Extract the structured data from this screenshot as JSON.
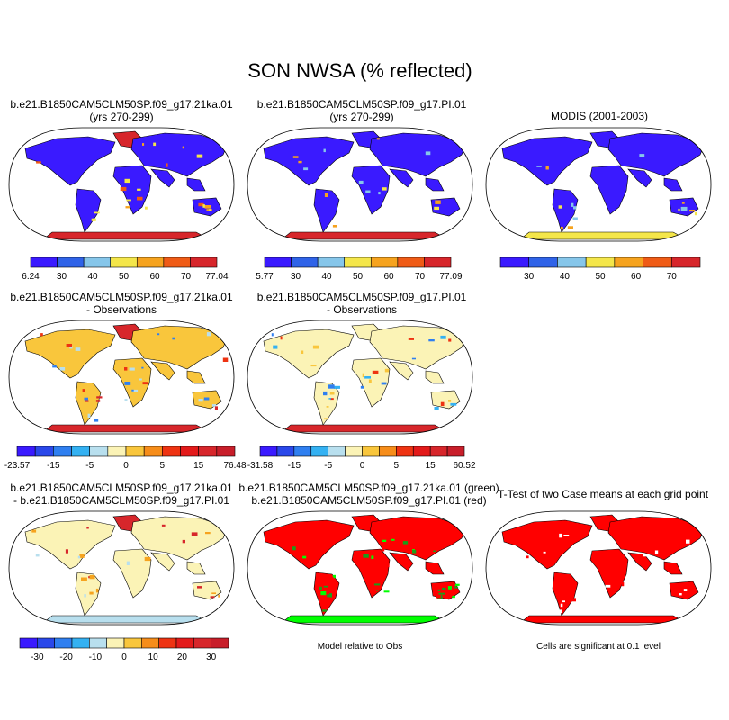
{
  "figure": {
    "title": "SON NWSA (% reflected)",
    "notes": {
      "model_relative": "Model relative to Obs",
      "significance": "Cells are significant at 0.1 level"
    }
  },
  "colors": {
    "level_colors_7": [
      "#3a1aff",
      "#2f63e8",
      "#86c6ea",
      "#f4e64a",
      "#f6a31e",
      "#ef5b16",
      "#d7262b"
    ],
    "diff_colors_10": [
      "#3a1aff",
      "#2a48ea",
      "#2f7ff0",
      "#34b1f2",
      "#b8dfee",
      "#fbf3b6",
      "#f9c63c",
      "#f68d1a",
      "#ee3312",
      "#d7262b"
    ],
    "diff_colors_12": [
      "#3a1aff",
      "#2a48ea",
      "#2f7ff0",
      "#34b1f2",
      "#b8dfee",
      "#fbf3b6",
      "#f9c63c",
      "#f68d1a",
      "#ee3312",
      "#e31a1a",
      "#d7262b",
      "#c81e2a"
    ],
    "land": "#3a1aff",
    "sig_red": "#ff0000",
    "sig_green": "#00ff00"
  },
  "chart_data": [
    {
      "type": "heatmap",
      "panel": "case1",
      "title_line1": "b.e21.B1850CAM5CLM50SP.f09_g17.21ka.01",
      "title_line2": "(yrs 270-299)",
      "colorbar_labels": [
        "6.24",
        "30",
        "40",
        "50",
        "60",
        "70",
        "77.04"
      ],
      "levels": [
        6.24,
        30,
        40,
        50,
        60,
        70,
        77.04
      ]
    },
    {
      "type": "heatmap",
      "panel": "case2",
      "title_line1": "b.e21.B1850CAM5CLM50SP.f09_g17.PI.01",
      "title_line2": "(yrs 270-299)",
      "colorbar_labels": [
        "5.77",
        "30",
        "40",
        "50",
        "60",
        "70",
        "77.09"
      ],
      "levels": [
        5.77,
        30,
        40,
        50,
        60,
        70,
        77.09
      ]
    },
    {
      "type": "heatmap",
      "panel": "obs",
      "title_line1": "MODIS (2001-2003)",
      "title_line2": "",
      "colorbar_labels": [
        "30",
        "40",
        "50",
        "60",
        "70"
      ],
      "levels": [
        30,
        40,
        50,
        60,
        70
      ]
    },
    {
      "type": "heatmap",
      "panel": "case1_minus_obs",
      "title_line1": "b.e21.B1850CAM5CLM50SP.f09_g17.21ka.01",
      "title_line2": "- Observations",
      "colorbar_labels": [
        "-23.57",
        "-15",
        "-5",
        "0",
        "5",
        "15",
        "76.48"
      ],
      "levels": [
        -23.57,
        -15,
        -5,
        0,
        5,
        15,
        76.48
      ]
    },
    {
      "type": "heatmap",
      "panel": "case2_minus_obs",
      "title_line1": "b.e21.B1850CAM5CLM50SP.f09_g17.PI.01",
      "title_line2": "- Observations",
      "colorbar_labels": [
        "-31.58",
        "-15",
        "-5",
        "0",
        "5",
        "15",
        "60.52"
      ],
      "levels": [
        -31.58,
        -15,
        -5,
        0,
        5,
        15,
        60.52
      ]
    },
    {
      "type": "heatmap",
      "panel": "case1_minus_case2",
      "title_line1": "b.e21.B1850CAM5CLM50SP.f09_g17.21ka.01",
      "title_line2": "- b.e21.B1850CAM5CLM50SP.f09_g17.PI.01",
      "colorbar_labels": [
        "-30",
        "-20",
        "-10",
        "0",
        "10",
        "20",
        "30"
      ],
      "levels": [
        -30,
        -20,
        -10,
        0,
        10,
        20,
        30
      ]
    },
    {
      "type": "heatmap",
      "panel": "model_relative_to_obs",
      "title_line1": "b.e21.B1850CAM5CLM50SP.f09_g17.21ka.01 (green)",
      "title_line2": "b.e21.B1850CAM5CLM50SP.f09_g17.PI.01 (red)",
      "categories": [
        "green",
        "red"
      ]
    },
    {
      "type": "heatmap",
      "panel": "ttest",
      "title_line1": "T-Test of two Case means at each grid point",
      "title_line2": ""
    }
  ]
}
